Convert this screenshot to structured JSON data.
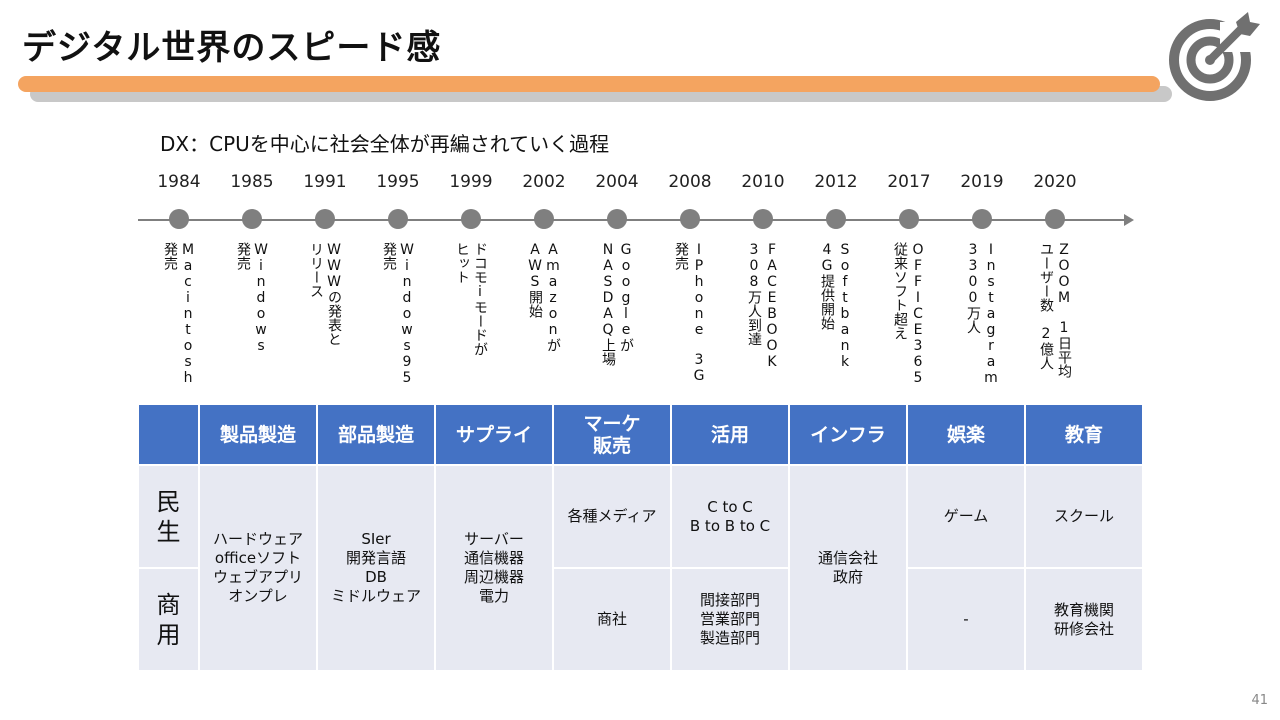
{
  "title": "デジタル世界のスピード感",
  "subtitle": "DX：CPUを中心に社会全体が再編されていく過程",
  "page_number": "41",
  "colors": {
    "accent_bar": "#f4a460",
    "header": "#4472c4",
    "cell": "#e7e9f2",
    "timeline": "#7f7f7f"
  },
  "logo_icon": "target-arrow-icon",
  "timeline": [
    {
      "year": "1984",
      "desc": "Macintosh\n発売"
    },
    {
      "year": "1985",
      "desc": "Windows\n発売"
    },
    {
      "year": "1991",
      "desc": "WWWの発表と\nリリース"
    },
    {
      "year": "1995",
      "desc": "Windows95\n発売"
    },
    {
      "year": "1999",
      "desc": "ドコモiモードが\nヒット"
    },
    {
      "year": "2002",
      "desc": "Amazonが\nAWS開始"
    },
    {
      "year": "2004",
      "desc": "Googleが\nNASDAQ上場"
    },
    {
      "year": "2008",
      "desc": "IPhone　3G\n発売"
    },
    {
      "year": "2010",
      "desc": "FACEBOOK\n308万人到達"
    },
    {
      "year": "2012",
      "desc": "Softbank\n4G提供開始"
    },
    {
      "year": "2017",
      "desc": "OFFICE365\n従来ソフト超え"
    },
    {
      "year": "2019",
      "desc": "Instagram\n3300万人"
    },
    {
      "year": "2020",
      "desc": "ZOOM　1日平均\nユーザー数　2億人"
    }
  ],
  "table": {
    "headers": [
      "製品製造",
      "部品製造",
      "サプライ",
      "マーケ\n販売",
      "活用",
      "インフラ",
      "娯楽",
      "教育"
    ],
    "row_labels": [
      "民\n生",
      "商\n用"
    ],
    "product_manufacturing": "ハードウェア\nofficeソフト\nウェブアプリ\nオンプレ",
    "parts_manufacturing": "SIer\n開発言語\nDB\nミドルウェア",
    "supply": "サーバー\n通信機器\n周辺機器\n電力",
    "infra": "通信会社\n政府",
    "consumer": {
      "marketing": "各種メディア",
      "usage": "C to C\nB to B to C",
      "entertainment": "ゲーム",
      "education": "スクール"
    },
    "commercial": {
      "marketing": "商社",
      "usage": "間接部門\n営業部門\n製造部門",
      "entertainment": "-",
      "education": "教育機関\n研修会社"
    }
  }
}
